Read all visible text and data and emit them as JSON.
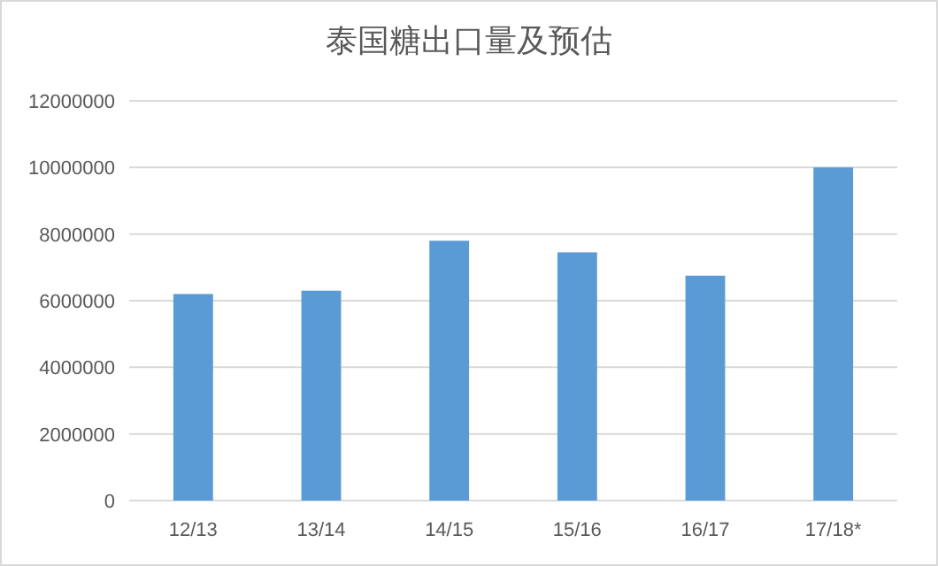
{
  "chart_data": {
    "type": "bar",
    "title": "泰国糖出口量及预估",
    "categories": [
      "12/13",
      "13/14",
      "14/15",
      "15/16",
      "16/17",
      "17/18*"
    ],
    "values": [
      6200000,
      6300000,
      7800000,
      7450000,
      6750000,
      10000000
    ],
    "color": "#5b9bd5",
    "ylim": [
      0,
      12000000
    ],
    "yticks": [
      0,
      2000000,
      4000000,
      6000000,
      8000000,
      10000000,
      12000000
    ],
    "grid": "y"
  }
}
